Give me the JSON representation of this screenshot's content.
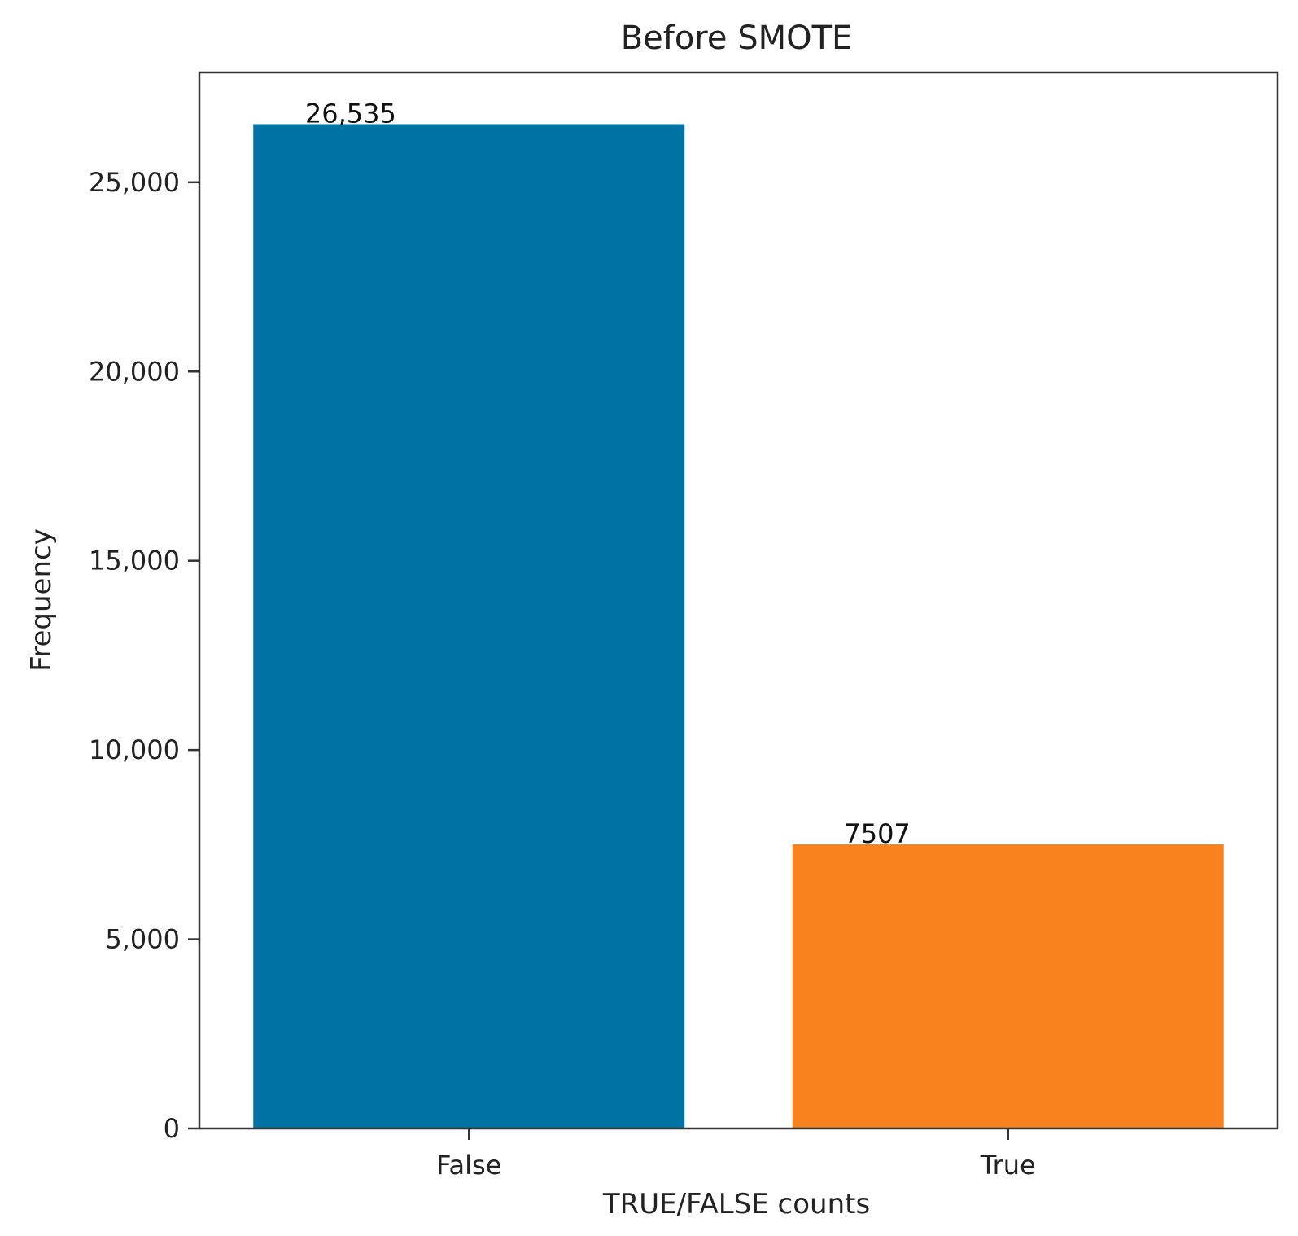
{
  "chart_data": {
    "type": "bar",
    "title": "Before SMOTE",
    "xlabel": "TRUE/FALSE counts",
    "ylabel": "Frequency",
    "categories": [
      "False",
      "True"
    ],
    "values": [
      26535,
      7507
    ],
    "value_labels": [
      "26,535",
      "7507"
    ],
    "colors": [
      "#0072a3",
      "#f7821e"
    ],
    "ylim": [
      0,
      27900
    ],
    "yticks": [
      0,
      5000,
      10000,
      15000,
      20000,
      25000
    ],
    "ytick_labels": [
      "0",
      "5,000",
      "10,000",
      "15,000",
      "20,000",
      "25,000"
    ],
    "grid": false,
    "legend": "none"
  }
}
